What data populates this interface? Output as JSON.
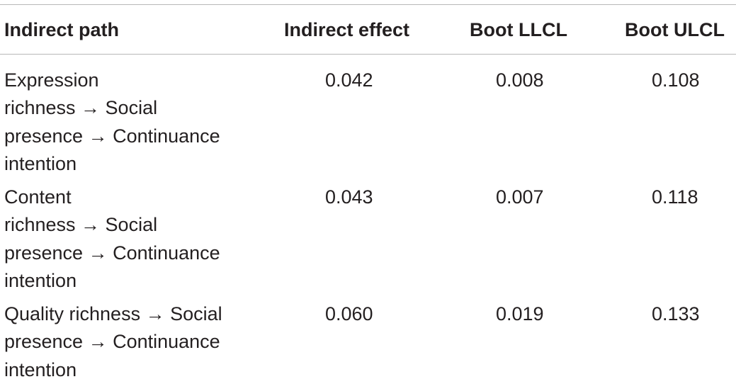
{
  "table": {
    "headers": [
      "Indirect path",
      "Indirect effect",
      "Boot LLCL",
      "Boot ULCL"
    ],
    "rows": [
      {
        "path_lines": [
          "Expression",
          "richness → Social",
          "presence → Continuance",
          "intention"
        ],
        "indirect_effect": "0.042",
        "boot_llcl": "0.008",
        "boot_ulcl": "0.108"
      },
      {
        "path_lines": [
          "Content",
          "richness → Social",
          "presence → Continuance",
          "intention"
        ],
        "indirect_effect": "0.043",
        "boot_llcl": "0.007",
        "boot_ulcl": "0.118"
      },
      {
        "path_lines": [
          "Quality richness → Social",
          "presence → Continuance",
          "intention"
        ],
        "indirect_effect": "0.060",
        "boot_llcl": "0.019",
        "boot_ulcl": "0.133"
      }
    ]
  }
}
